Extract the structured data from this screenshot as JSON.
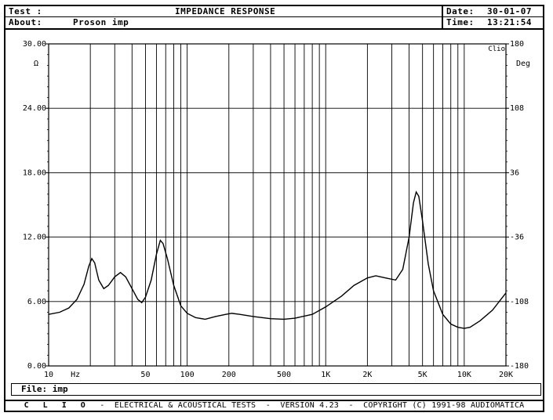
{
  "header": {
    "test_label": "Test  :",
    "about_label": "About:",
    "about_value": "Proson imp",
    "title": "IMPEDANCE RESPONSE",
    "date_label": "Date:",
    "date_value": "30-01-07",
    "time_label": "Time:",
    "time_value": "13:21:54"
  },
  "file": {
    "label": "File:",
    "value": "imp"
  },
  "footer": {
    "brand": "C L I O",
    "text": "  -  ELECTRICAL & ACOUSTICAL TESTS  -  VERSION 4.23  -  COPYRIGHT (C) 1991-98 AUDIOMATICA"
  },
  "chart_data": {
    "type": "line",
    "title": "IMPEDANCE RESPONSE",
    "x_scale": "log",
    "xlim": [
      10,
      20000
    ],
    "ylim": [
      0,
      30
    ],
    "y2lim": [
      -180,
      180
    ],
    "grid": true,
    "ylabel": "Ω",
    "y2label": "Deg",
    "xunit": "Hz",
    "corner_label": "Clio",
    "x_ticks": [
      {
        "v": 10,
        "label": "10"
      },
      {
        "v": 50,
        "label": "50"
      },
      {
        "v": 100,
        "label": "100"
      },
      {
        "v": 200,
        "label": "200"
      },
      {
        "v": 500,
        "label": "500"
      },
      {
        "v": 1000,
        "label": "1K"
      },
      {
        "v": 2000,
        "label": "2K"
      },
      {
        "v": 5000,
        "label": "5K"
      },
      {
        "v": 10000,
        "label": "10K"
      },
      {
        "v": 20000,
        "label": "20K"
      }
    ],
    "y_ticks": [
      {
        "v": 0,
        "label": "0.00"
      },
      {
        "v": 6,
        "label": "6.00"
      },
      {
        "v": 12,
        "label": "12.00"
      },
      {
        "v": 18,
        "label": "18.00"
      },
      {
        "v": 24,
        "label": "24.00"
      },
      {
        "v": 30,
        "label": "30.00"
      }
    ],
    "y2_ticks": [
      {
        "v": -180,
        "label": "-180"
      },
      {
        "v": -108,
        "label": "-108"
      },
      {
        "v": -36,
        "label": "-36"
      },
      {
        "v": 36,
        "label": "36"
      },
      {
        "v": 108,
        "label": "108"
      },
      {
        "v": 180,
        "label": "180"
      }
    ],
    "series": [
      {
        "color": "#000000",
        "points": [
          [
            10,
            4.8
          ],
          [
            12,
            5.0
          ],
          [
            14,
            5.4
          ],
          [
            16,
            6.2
          ],
          [
            18,
            7.6
          ],
          [
            19.5,
            9.3
          ],
          [
            20.5,
            10.0
          ],
          [
            21.5,
            9.6
          ],
          [
            23,
            8.0
          ],
          [
            25,
            7.2
          ],
          [
            27,
            7.5
          ],
          [
            30,
            8.3
          ],
          [
            33,
            8.7
          ],
          [
            36,
            8.3
          ],
          [
            40,
            7.2
          ],
          [
            44,
            6.2
          ],
          [
            47,
            5.9
          ],
          [
            50,
            6.4
          ],
          [
            55,
            8.0
          ],
          [
            60,
            10.4
          ],
          [
            64,
            11.7
          ],
          [
            67,
            11.4
          ],
          [
            72,
            10.0
          ],
          [
            80,
            7.5
          ],
          [
            90,
            5.6
          ],
          [
            100,
            4.9
          ],
          [
            115,
            4.5
          ],
          [
            135,
            4.35
          ],
          [
            160,
            4.6
          ],
          [
            190,
            4.8
          ],
          [
            210,
            4.9
          ],
          [
            240,
            4.8
          ],
          [
            300,
            4.6
          ],
          [
            400,
            4.4
          ],
          [
            500,
            4.35
          ],
          [
            600,
            4.45
          ],
          [
            800,
            4.8
          ],
          [
            1000,
            5.5
          ],
          [
            1300,
            6.5
          ],
          [
            1600,
            7.5
          ],
          [
            2000,
            8.2
          ],
          [
            2300,
            8.4
          ],
          [
            2700,
            8.2
          ],
          [
            3200,
            8.0
          ],
          [
            3600,
            9.0
          ],
          [
            4000,
            12.0
          ],
          [
            4300,
            15.2
          ],
          [
            4500,
            16.2
          ],
          [
            4700,
            15.8
          ],
          [
            5000,
            13.5
          ],
          [
            5500,
            9.5
          ],
          [
            6000,
            7.0
          ],
          [
            7000,
            4.8
          ],
          [
            8000,
            3.9
          ],
          [
            9000,
            3.6
          ],
          [
            10000,
            3.5
          ],
          [
            11000,
            3.6
          ],
          [
            13000,
            4.2
          ],
          [
            16000,
            5.2
          ],
          [
            20000,
            6.8
          ]
        ]
      }
    ]
  }
}
